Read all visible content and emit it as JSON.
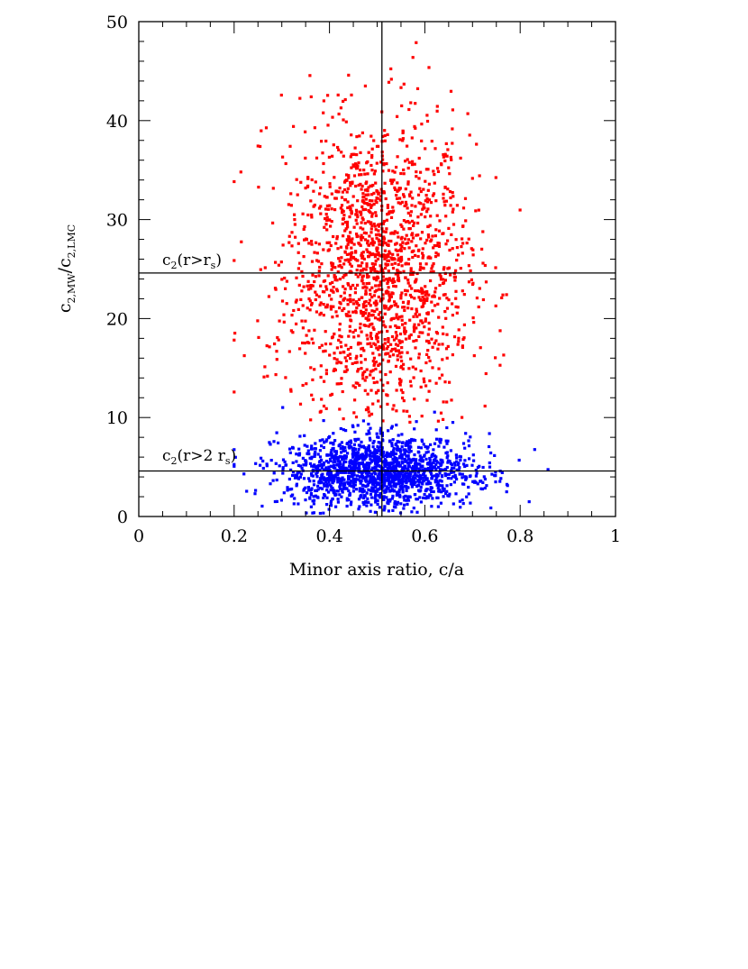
{
  "chart_data": {
    "type": "scatter",
    "xlabel": "Minor axis ratio, c/a",
    "ylabel": {
      "base": "c",
      "num_sub": "2,MW",
      "slash": "/",
      "den_base": "c",
      "den_sub": "2,LMC"
    },
    "xlim": [
      0,
      1
    ],
    "ylim": [
      0,
      50
    ],
    "x_ticks": [
      0,
      0.2,
      0.4,
      0.6,
      0.8,
      1
    ],
    "x_tick_labels": [
      "0",
      "0.2",
      "0.4",
      "0.6",
      "0.8",
      "1"
    ],
    "y_ticks": [
      0,
      10,
      20,
      30,
      40,
      50
    ],
    "y_tick_labels": [
      "0",
      "10",
      "20",
      "30",
      "40",
      "50"
    ],
    "grid": false,
    "reference_lines": {
      "vertical_x": 0.51,
      "horizontal": [
        {
          "y": 24.6,
          "label": {
            "base": "c",
            "sub": "2",
            "text": "(r>r",
            "sub2": "s",
            "close": ")"
          }
        },
        {
          "y": 4.6,
          "label": {
            "base": "c",
            "sub": "2",
            "text": "(r>2 r",
            "sub2": "s",
            "close": ")"
          }
        }
      ]
    },
    "series": [
      {
        "color": "#ff0000",
        "distribution": {
          "count": 1700,
          "x_mean": 0.5,
          "x_sd": 0.095,
          "x_range": [
            0.2,
            0.87
          ],
          "y_range": [
            9.5,
            48
          ],
          "y_center": 24.6,
          "y_sd": 8
        }
      },
      {
        "color": "#0000ff",
        "distribution": {
          "count": 1600,
          "x_mean": 0.5,
          "x_sd": 0.1,
          "x_range": [
            0.2,
            0.86
          ],
          "y_range": [
            0.3,
            12.3
          ],
          "y_center": 4.6,
          "y_sd": 1.8
        }
      }
    ]
  }
}
